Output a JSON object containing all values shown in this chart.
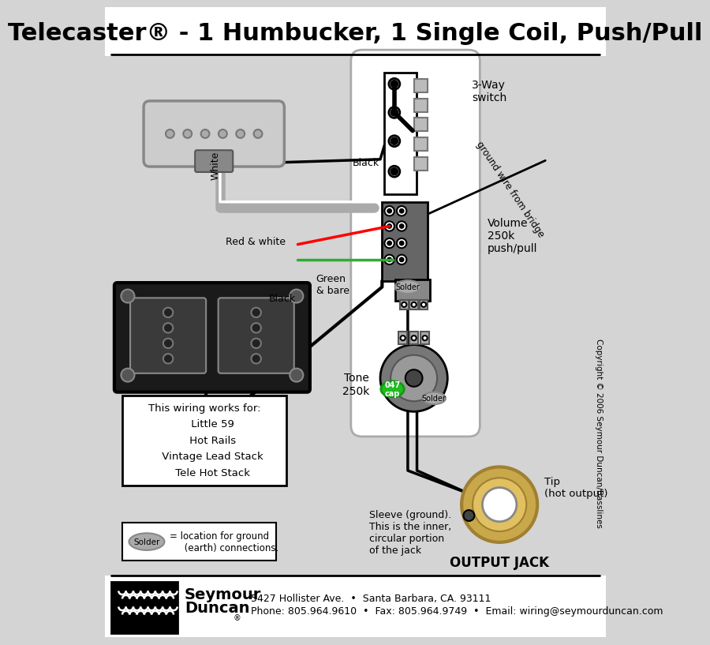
{
  "title": "Telecaster® - 1 Humbucker, 1 Single Coil, Push/Pull",
  "bg_color": "#d4d4d4",
  "title_fontsize": 22,
  "footer_line1": "5427 Hollister Ave.  •  Santa Barbara, CA. 93111",
  "footer_line2": "Phone: 805.964.9610  •  Fax: 805.964.9749  •  Email: wiring@seymourduncan.com",
  "box_text": "This wiring works for:\n     Little 59\n     Hot Rails\n     Vintage Lead Stack\n     Tele Hot Stack",
  "solder_legend": "= location for ground\n     (earth) connections.",
  "switch_label": "3-Way\nswitch",
  "volume_label": "Volume\n250k\npush/pull",
  "tone_label": "Tone\n250k",
  "output_label": "OUTPUT JACK",
  "tip_label": "Tip\n(hot output)",
  "sleeve_label": "Sleeve (ground).\nThis is the inner,\ncircular portion\nof the jack",
  "ground_wire_label": "ground wire from bridge",
  "black_label": "Black",
  "white_label": "White",
  "red_white_label": "Red & white",
  "green_bare_label": "Green\n& bare",
  "cap_label": "047\ncap",
  "solder_label": "Solder",
  "copyright": "Copyright © 2006 Seymour Duncan/Basslines"
}
